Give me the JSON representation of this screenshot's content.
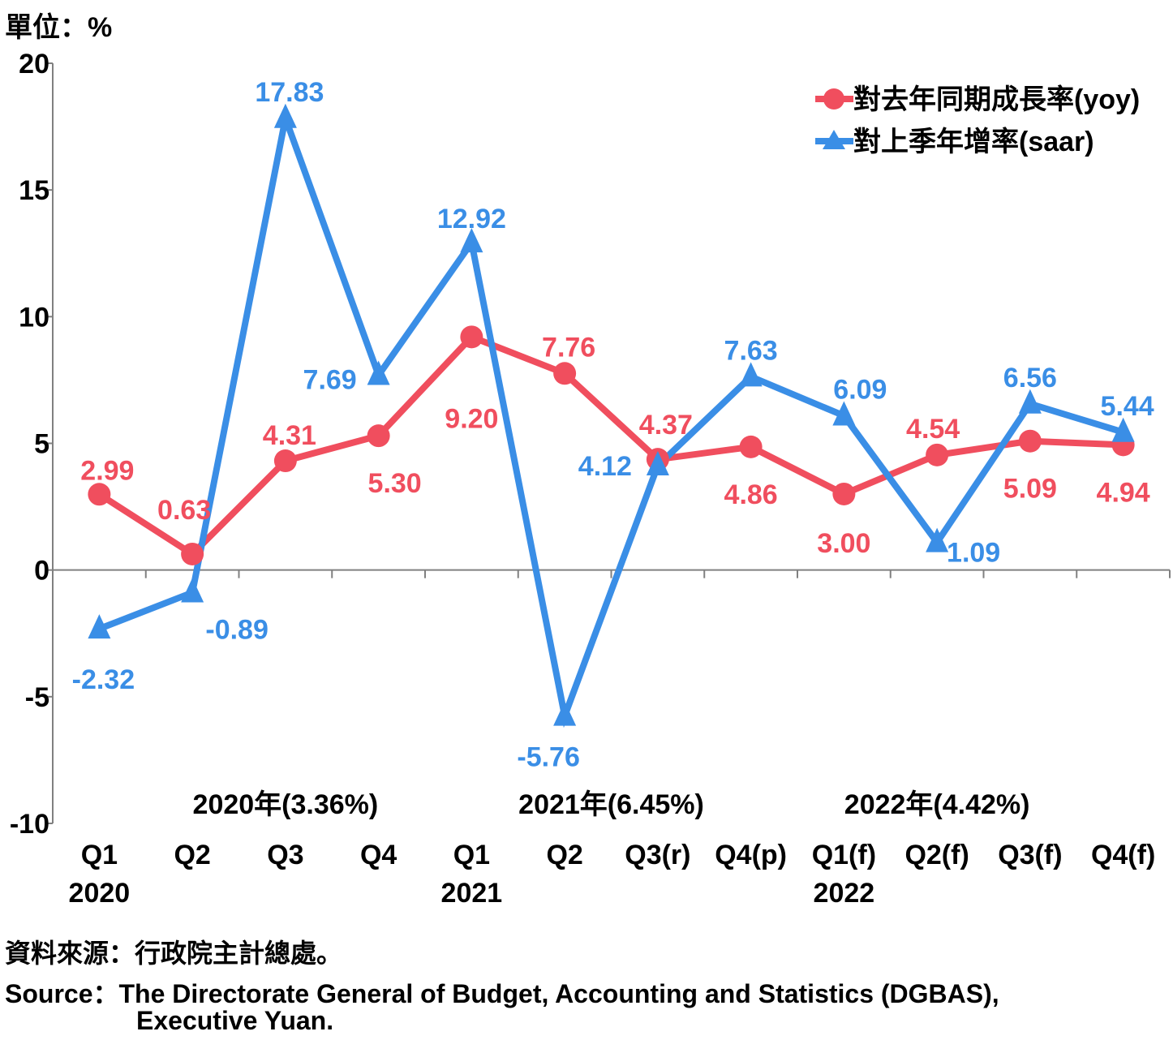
{
  "unit_label": "單位：%",
  "source_zh": "資料來源：行政院主計總處。",
  "source_en_line1": "Source：The Directorate General of Budget, Accounting and Statistics (DGBAS),",
  "source_en_line2": "Executive Yuan.",
  "chart_data": {
    "type": "line",
    "ylim": [
      -10,
      20
    ],
    "yticks": [
      "20",
      "15",
      "10",
      "5",
      "0",
      "-5",
      "-10"
    ],
    "ytick_values": [
      20,
      15,
      10,
      5,
      0,
      -5,
      -10
    ],
    "categories": [
      "Q1",
      "Q2",
      "Q3",
      "Q4",
      "Q1",
      "Q2",
      "Q3(r)",
      "Q4(p)",
      "Q1(f)",
      "Q2(f)",
      "Q3(f)",
      "Q4(f)"
    ],
    "year_labels": [
      {
        "index": 0,
        "text": "2020"
      },
      {
        "index": 4,
        "text": "2021"
      },
      {
        "index": 8,
        "text": "2022"
      }
    ],
    "annual_labels": [
      {
        "center": 2.0,
        "text": "2020年(3.36%)"
      },
      {
        "center": 5.5,
        "text": "2021年(6.45%)"
      },
      {
        "center": 9.0,
        "text": "2022年(4.42%)"
      }
    ],
    "legend_position": "top-right",
    "series": [
      {
        "name": "對去年同期成長率(yoy)",
        "color": "#f04e5e",
        "marker": "circle",
        "values": [
          2.99,
          0.63,
          4.31,
          5.3,
          9.2,
          7.76,
          4.37,
          4.86,
          3.0,
          4.54,
          5.09,
          4.94
        ],
        "labels": [
          "2.99",
          "0.63",
          "4.31",
          "5.30",
          "9.20",
          "7.76",
          "4.37",
          "4.86",
          "3.00",
          "4.54",
          "5.09",
          "4.94"
        ]
      },
      {
        "name": "對上季年增率(saar)",
        "color": "#3a8ee6",
        "marker": "triangle",
        "values": [
          -2.32,
          -0.89,
          17.83,
          7.69,
          12.92,
          -5.76,
          4.12,
          7.63,
          6.09,
          1.09,
          6.56,
          5.44
        ],
        "labels": [
          "-2.32",
          "-0.89",
          "17.83",
          "7.69",
          "12.92",
          "-5.76",
          "4.12",
          "7.63",
          "6.09",
          "1.09",
          "6.56",
          "5.44"
        ]
      }
    ]
  }
}
